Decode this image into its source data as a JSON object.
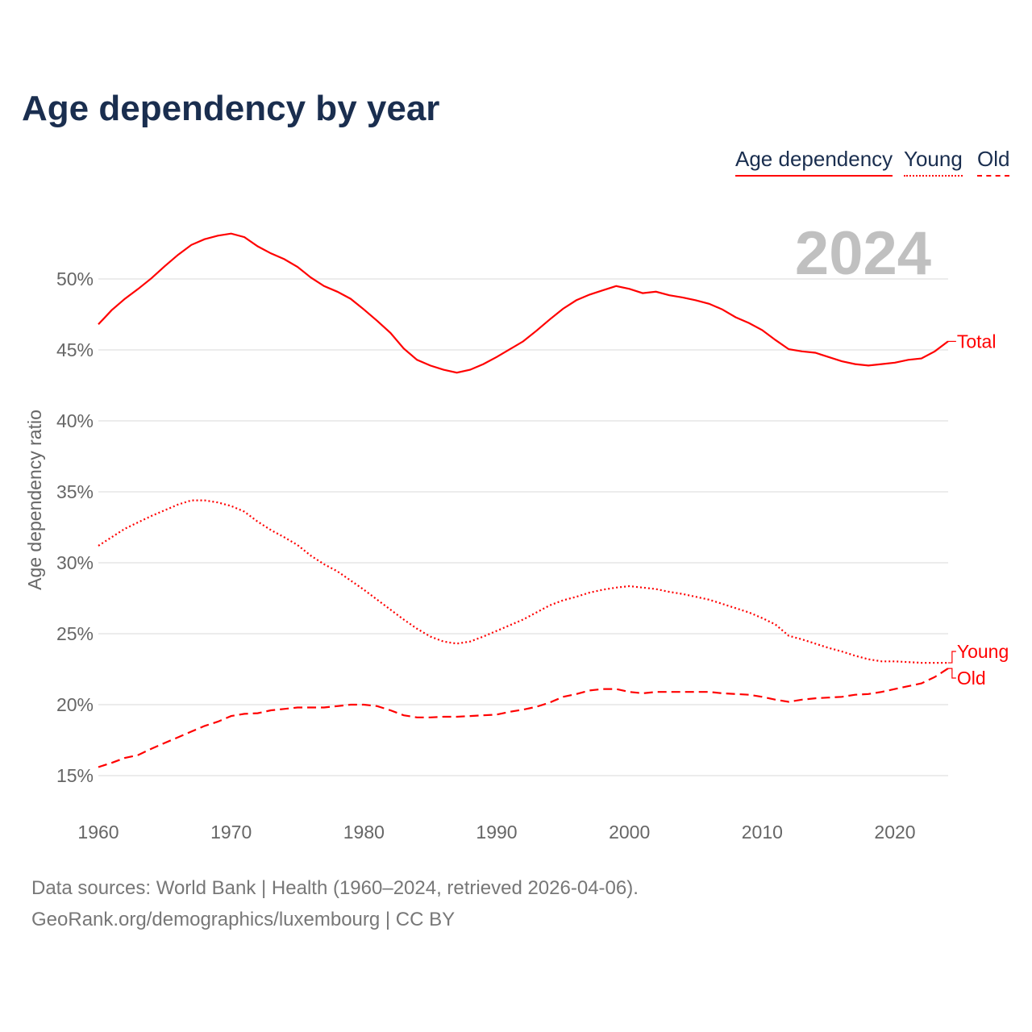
{
  "title": "Age dependency by year",
  "legend": {
    "total": "Age dependency",
    "young": "Young",
    "old": "Old"
  },
  "year_label": "2024",
  "footer": {
    "line1": "Data sources: World Bank | Health (1960–2024, retrieved 2026-04-06).",
    "line2": "GeoRank.org/demographics/luxembourg | CC BY"
  },
  "colors": {
    "series": "#ff0000",
    "title": "#1a2e4f",
    "grid": "#e6e6e6",
    "year": "#c0c0c0"
  },
  "chart_data": {
    "type": "line",
    "title": "Age dependency by year",
    "xlabel": "",
    "ylabel": "Age dependency ratio",
    "xlim": [
      1960,
      2024
    ],
    "ylim": [
      13,
      54
    ],
    "xticks": [
      1960,
      1970,
      1980,
      1990,
      2000,
      2010,
      2020
    ],
    "yticks": [
      15,
      20,
      25,
      30,
      35,
      40,
      45,
      50
    ],
    "ytick_labels": [
      "15%",
      "20%",
      "25%",
      "30%",
      "35%",
      "40%",
      "45%",
      "50%"
    ],
    "grid": true,
    "start_year": 1960,
    "series": [
      {
        "name": "Total",
        "label": "Total",
        "style": "solid",
        "values": [
          46.8,
          47.8,
          48.6,
          49.3,
          50.05,
          50.9,
          51.7,
          52.4,
          52.8,
          53.05,
          53.2,
          52.95,
          52.3,
          51.8,
          51.4,
          50.85,
          50.1,
          49.5,
          49.1,
          48.6,
          47.85,
          47.05,
          46.2,
          45.1,
          44.3,
          43.9,
          43.6,
          43.4,
          43.6,
          44.0,
          44.5,
          45.05,
          45.6,
          46.35,
          47.15,
          47.9,
          48.5,
          48.9,
          49.2,
          49.5,
          49.3,
          49.0,
          49.1,
          48.85,
          48.7,
          48.5,
          48.25,
          47.85,
          47.3,
          46.9,
          46.4,
          45.7,
          45.05,
          44.9,
          44.8,
          44.5,
          44.2,
          44.0,
          43.9,
          44.0,
          44.1,
          44.3,
          44.4,
          44.9,
          45.6
        ]
      },
      {
        "name": "Young",
        "label": "Young",
        "style": "dotted",
        "values": [
          31.2,
          31.8,
          32.4,
          32.85,
          33.3,
          33.7,
          34.1,
          34.4,
          34.4,
          34.25,
          34.0,
          33.6,
          32.9,
          32.3,
          31.8,
          31.25,
          30.5,
          29.9,
          29.4,
          28.75,
          28.1,
          27.4,
          26.7,
          26.0,
          25.35,
          24.8,
          24.45,
          24.3,
          24.45,
          24.8,
          25.2,
          25.6,
          26.0,
          26.5,
          27.0,
          27.35,
          27.6,
          27.9,
          28.1,
          28.25,
          28.35,
          28.25,
          28.15,
          27.95,
          27.8,
          27.6,
          27.4,
          27.1,
          26.8,
          26.5,
          26.1,
          25.65,
          24.85,
          24.6,
          24.3,
          24.0,
          23.75,
          23.45,
          23.2,
          23.05,
          23.05,
          23.0,
          22.95,
          22.95,
          22.95
        ]
      },
      {
        "name": "Old",
        "label": "Old",
        "style": "dashed",
        "values": [
          15.6,
          15.9,
          16.25,
          16.45,
          16.9,
          17.3,
          17.7,
          18.1,
          18.5,
          18.8,
          19.2,
          19.35,
          19.4,
          19.6,
          19.7,
          19.8,
          19.8,
          19.8,
          19.9,
          20.0,
          20.0,
          19.9,
          19.6,
          19.25,
          19.1,
          19.1,
          19.15,
          19.15,
          19.2,
          19.25,
          19.3,
          19.5,
          19.65,
          19.85,
          20.15,
          20.55,
          20.75,
          21.0,
          21.1,
          21.1,
          20.9,
          20.8,
          20.9,
          20.9,
          20.9,
          20.9,
          20.9,
          20.8,
          20.75,
          20.7,
          20.55,
          20.35,
          20.2,
          20.35,
          20.45,
          20.5,
          20.55,
          20.7,
          20.75,
          20.9,
          21.1,
          21.3,
          21.5,
          21.95,
          22.55
        ]
      }
    ]
  }
}
